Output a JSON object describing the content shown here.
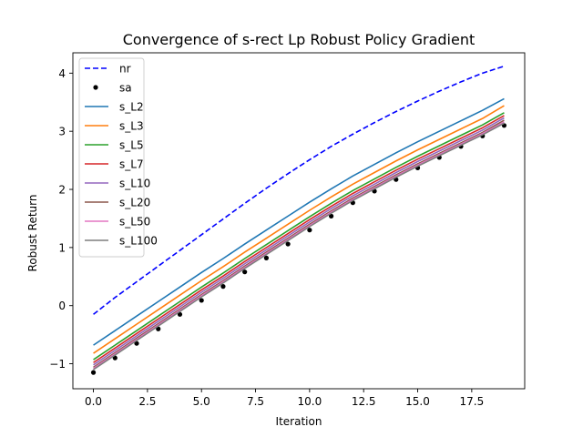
{
  "chart_data": {
    "type": "line",
    "title": "Convergence of s-rect Lp Robust Policy Gradient",
    "xlabel": "Iteration",
    "ylabel": "Robust Return",
    "xlim": [
      -0.95,
      19.95
    ],
    "ylim": [
      -1.43,
      4.35
    ],
    "x_ticks": [
      0.0,
      2.5,
      5.0,
      7.5,
      10.0,
      12.5,
      15.0,
      17.5
    ],
    "x_tick_labels": [
      "0.0",
      "2.5",
      "5.0",
      "7.5",
      "10.0",
      "12.5",
      "15.0",
      "17.5"
    ],
    "y_ticks": [
      -1,
      0,
      1,
      2,
      3,
      4
    ],
    "y_tick_labels": [
      "−1",
      "0",
      "1",
      "2",
      "3",
      "4"
    ],
    "grid": false,
    "legend_position": "top-left",
    "x": [
      0,
      1,
      2,
      3,
      4,
      5,
      6,
      7,
      8,
      9,
      10,
      11,
      12,
      13,
      14,
      15,
      16,
      17,
      18,
      19
    ],
    "series": [
      {
        "name": "nr",
        "style": "dashed",
        "color": "#0000ff",
        "values": [
          -0.15,
          0.14,
          0.41,
          0.68,
          0.95,
          1.22,
          1.49,
          1.76,
          2.02,
          2.27,
          2.51,
          2.74,
          2.95,
          3.15,
          3.34,
          3.52,
          3.69,
          3.85,
          4.0,
          4.12
        ]
      },
      {
        "name": "sa",
        "style": "points",
        "color": "#000000",
        "values": [
          -1.15,
          -0.9,
          -0.65,
          -0.4,
          -0.15,
          0.09,
          0.33,
          0.58,
          0.82,
          1.06,
          1.3,
          1.54,
          1.77,
          1.97,
          2.17,
          2.37,
          2.55,
          2.74,
          2.92,
          3.1
        ]
      },
      {
        "name": "s_L2",
        "style": "solid",
        "color": "#1f77b4",
        "values": [
          -0.68,
          -0.43,
          -0.18,
          0.07,
          0.32,
          0.57,
          0.81,
          1.06,
          1.3,
          1.54,
          1.78,
          2.01,
          2.23,
          2.43,
          2.63,
          2.82,
          3.0,
          3.18,
          3.36,
          3.56
        ]
      },
      {
        "name": "s_L3",
        "style": "solid",
        "color": "#ff7f0e",
        "values": [
          -0.82,
          -0.57,
          -0.32,
          -0.07,
          0.18,
          0.43,
          0.67,
          0.92,
          1.16,
          1.4,
          1.64,
          1.87,
          2.09,
          2.29,
          2.49,
          2.68,
          2.86,
          3.04,
          3.22,
          3.44
        ]
      },
      {
        "name": "s_L5",
        "style": "solid",
        "color": "#2ca02c",
        "values": [
          -0.93,
          -0.68,
          -0.43,
          -0.18,
          0.07,
          0.32,
          0.56,
          0.81,
          1.05,
          1.29,
          1.53,
          1.76,
          1.98,
          2.18,
          2.38,
          2.57,
          2.75,
          2.93,
          3.11,
          3.32
        ]
      },
      {
        "name": "s_L7",
        "style": "solid",
        "color": "#d62728",
        "values": [
          -0.98,
          -0.73,
          -0.48,
          -0.23,
          0.02,
          0.27,
          0.51,
          0.76,
          1.0,
          1.24,
          1.48,
          1.71,
          1.93,
          2.13,
          2.33,
          2.52,
          2.7,
          2.88,
          3.06,
          3.27
        ]
      },
      {
        "name": "s_L10",
        "style": "solid",
        "color": "#9467bd",
        "values": [
          -1.02,
          -0.77,
          -0.52,
          -0.27,
          -0.02,
          0.23,
          0.47,
          0.72,
          0.96,
          1.2,
          1.44,
          1.67,
          1.89,
          2.09,
          2.29,
          2.48,
          2.66,
          2.84,
          3.02,
          3.23
        ]
      },
      {
        "name": "s_L20",
        "style": "solid",
        "color": "#8c564b",
        "values": [
          -1.06,
          -0.81,
          -0.56,
          -0.31,
          -0.06,
          0.19,
          0.43,
          0.68,
          0.92,
          1.16,
          1.4,
          1.63,
          1.85,
          2.05,
          2.25,
          2.44,
          2.62,
          2.8,
          2.98,
          3.19
        ]
      },
      {
        "name": "s_L50",
        "style": "solid",
        "color": "#e377c2",
        "values": [
          -1.08,
          -0.83,
          -0.58,
          -0.33,
          -0.08,
          0.17,
          0.41,
          0.66,
          0.9,
          1.14,
          1.38,
          1.61,
          1.83,
          2.03,
          2.23,
          2.42,
          2.6,
          2.78,
          2.96,
          3.16
        ]
      },
      {
        "name": "s_L100",
        "style": "solid",
        "color": "#7f7f7f",
        "values": [
          -1.1,
          -0.85,
          -0.6,
          -0.35,
          -0.1,
          0.15,
          0.39,
          0.64,
          0.88,
          1.12,
          1.36,
          1.59,
          1.81,
          2.01,
          2.21,
          2.4,
          2.58,
          2.76,
          2.94,
          3.14
        ]
      }
    ]
  }
}
